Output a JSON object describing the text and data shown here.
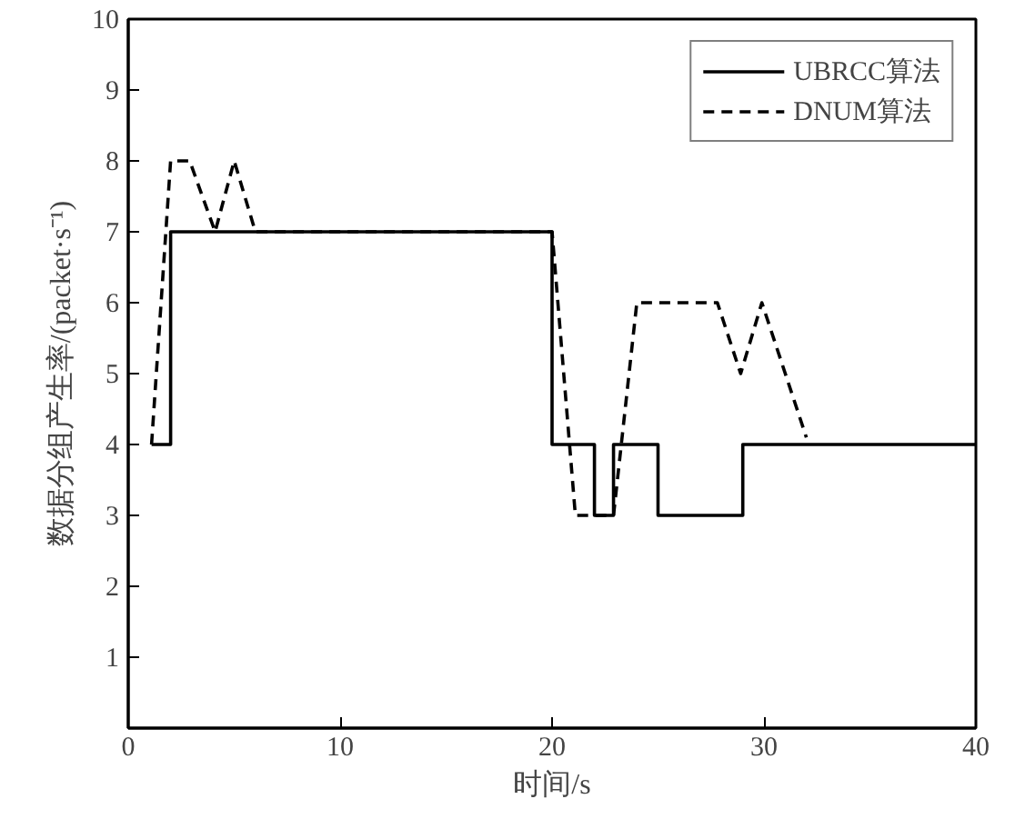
{
  "chart_data": {
    "type": "line",
    "xlabel": "时间/s",
    "ylabel": "数据分组产生率/(packet·s⁻¹)",
    "xlim": [
      0,
      40
    ],
    "ylim": [
      0,
      10
    ],
    "xticks": [
      0,
      10,
      20,
      30,
      40
    ],
    "yticks": [
      {
        "value": 0,
        "label": null
      },
      1,
      2,
      3,
      4,
      5,
      6,
      7,
      8,
      9,
      10
    ],
    "grid": false,
    "legend": "top right",
    "marker": "none",
    "series": [
      {
        "name": "UBRCC算法",
        "type": "step",
        "color": "#000000",
        "line_style": "solid",
        "x": [
          1.1,
          2,
          20,
          22,
          22.9,
          25,
          29,
          40
        ],
        "values": [
          4,
          7,
          4,
          3,
          4,
          3,
          4,
          4
        ]
      },
      {
        "name": "DNUM算法",
        "color": "#000000",
        "line_style": "dashed",
        "x": [
          1.1,
          2,
          2.9,
          4.1,
          5,
          6,
          20,
          21.1,
          22.9,
          24,
          27.8,
          28.9,
          29.9,
          32
        ],
        "values": [
          4,
          8,
          8,
          7,
          8,
          7,
          7,
          3,
          3,
          6,
          6,
          5,
          6,
          4.1
        ]
      }
    ]
  }
}
